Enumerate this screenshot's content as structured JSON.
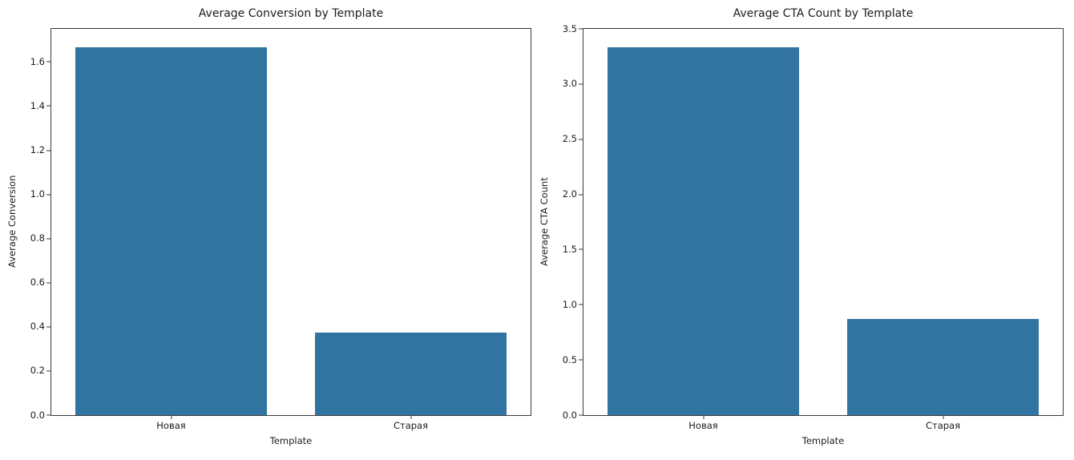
{
  "figure": {
    "background_color": "#ffffff",
    "bar_color": "#3274a1",
    "spine_color": "#3a3a3a",
    "text_color": "#1c1c1c"
  },
  "chart_data": [
    {
      "type": "bar",
      "title": "Average Conversion by Template",
      "xlabel": "Template",
      "ylabel": "Average Conversion",
      "categories": [
        "Новая",
        "Старая"
      ],
      "values": [
        1.667,
        0.375
      ],
      "ylim": [
        0,
        1.75
      ],
      "yticks": [
        0.0,
        0.2,
        0.4,
        0.6,
        0.8,
        1.0,
        1.2,
        1.4,
        1.6
      ],
      "bar_color": "#3274a1",
      "grid": false,
      "legend": false
    },
    {
      "type": "bar",
      "title": "Average CTA Count by Template",
      "xlabel": "Template",
      "ylabel": "Average CTA Count",
      "categories": [
        "Новая",
        "Старая"
      ],
      "values": [
        3.333,
        0.875
      ],
      "ylim": [
        0,
        3.5
      ],
      "yticks": [
        0.0,
        0.5,
        1.0,
        1.5,
        2.0,
        2.5,
        3.0,
        3.5
      ],
      "bar_color": "#3274a1",
      "grid": false,
      "legend": false
    }
  ]
}
